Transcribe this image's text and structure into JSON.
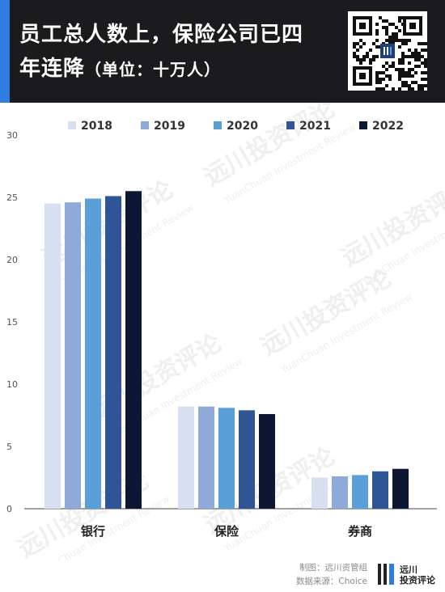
{
  "header": {
    "title_line1": "员工总人数上，保险公司已四",
    "title_line2": "年连降",
    "title_unit": "（单位：十万人）"
  },
  "watermark": {
    "text_cn": "远川投资评论",
    "text_en": "YuanChuan Investment Review"
  },
  "footer": {
    "credit": "制图：远川资管组",
    "source": "数据来源：Choice",
    "logo_line1": "远川",
    "logo_line2": "投资评论"
  },
  "colors": {
    "header_bg": "#1b1b1d",
    "accent": "#2f7de1",
    "series": [
      "#d6e0f0",
      "#8fa9d9",
      "#5b9fd8",
      "#2f5597",
      "#0d1733"
    ]
  },
  "chart_data": {
    "type": "bar",
    "categories": [
      "银行",
      "保险",
      "券商"
    ],
    "series": [
      {
        "name": "2018",
        "values": [
          24.5,
          8.2,
          2.5
        ]
      },
      {
        "name": "2019",
        "values": [
          24.6,
          8.2,
          2.6
        ]
      },
      {
        "name": "2020",
        "values": [
          24.9,
          8.1,
          2.7
        ]
      },
      {
        "name": "2021",
        "values": [
          25.1,
          7.9,
          3.0
        ]
      },
      {
        "name": "2022",
        "values": [
          25.5,
          7.6,
          3.2
        ]
      }
    ],
    "yticks": [
      "0",
      "5",
      "10",
      "15",
      "20",
      "25",
      "30"
    ],
    "ylim": [
      0,
      30
    ],
    "legend_position": "top",
    "grid": false
  }
}
